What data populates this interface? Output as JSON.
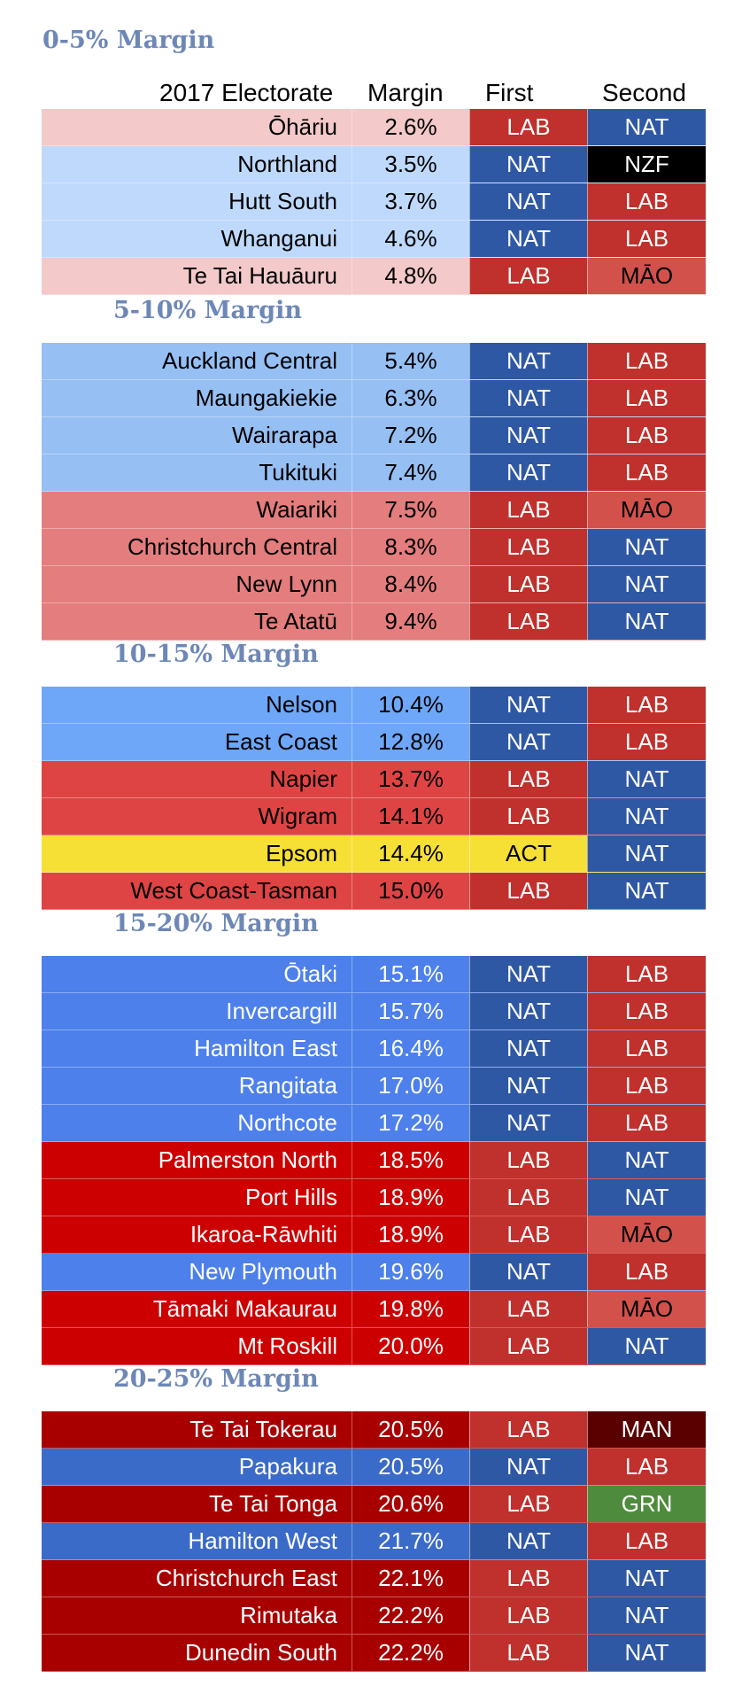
{
  "headers": {
    "electorate": "2017 Electorate",
    "margin": "Margin",
    "first": "First",
    "second": "Second"
  },
  "party_colors": {
    "LAB": "#c0302c",
    "NAT": "#2f58a4",
    "NZF": "#000000",
    "MĀO": "#d3514b",
    "ACT": "#f7e036",
    "MAN": "#5a0000",
    "GRN": "#4f8b3c"
  },
  "party_text_colors": {
    "ACT": "#000000",
    "MĀO": "#000000"
  },
  "sections": [
    {
      "title": "0-5% Margin",
      "rows": [
        {
          "name": "Ōhāriu",
          "margin": "2.6%",
          "first": "LAB",
          "second": "NAT",
          "bg": "#f3c9c9",
          "fg": "#000000"
        },
        {
          "name": "Northland",
          "margin": "3.5%",
          "first": "NAT",
          "second": "NZF",
          "bg": "#bed9fb",
          "fg": "#000000"
        },
        {
          "name": "Hutt South",
          "margin": "3.7%",
          "first": "NAT",
          "second": "LAB",
          "bg": "#bed9fb",
          "fg": "#000000"
        },
        {
          "name": "Whanganui",
          "margin": "4.6%",
          "first": "NAT",
          "second": "LAB",
          "bg": "#bed9fb",
          "fg": "#000000"
        },
        {
          "name": "Te Tai Hauāuru",
          "margin": "4.8%",
          "first": "LAB",
          "second": "MĀO",
          "bg": "#f3c9c9",
          "fg": "#000000"
        }
      ]
    },
    {
      "title": "5-10% Margin",
      "rows": [
        {
          "name": "Auckland Central",
          "margin": "5.4%",
          "first": "NAT",
          "second": "LAB",
          "bg": "#96bff3",
          "fg": "#000000"
        },
        {
          "name": "Maungakiekie",
          "margin": "6.3%",
          "first": "NAT",
          "second": "LAB",
          "bg": "#96bff3",
          "fg": "#000000"
        },
        {
          "name": "Wairarapa",
          "margin": "7.2%",
          "first": "NAT",
          "second": "LAB",
          "bg": "#96bff3",
          "fg": "#000000"
        },
        {
          "name": "Tukituki",
          "margin": "7.4%",
          "first": "NAT",
          "second": "LAB",
          "bg": "#96bff3",
          "fg": "#000000"
        },
        {
          "name": "Waiariki",
          "margin": "7.5%",
          "first": "LAB",
          "second": "MĀO",
          "bg": "#e47d7d",
          "fg": "#000000"
        },
        {
          "name": "Christchurch Central",
          "margin": "8.3%",
          "first": "LAB",
          "second": "NAT",
          "bg": "#e47d7d",
          "fg": "#000000"
        },
        {
          "name": "New Lynn",
          "margin": "8.4%",
          "first": "LAB",
          "second": "NAT",
          "bg": "#e47d7d",
          "fg": "#000000"
        },
        {
          "name": "Te Atatū",
          "margin": "9.4%",
          "first": "LAB",
          "second": "NAT",
          "bg": "#e47d7d",
          "fg": "#000000"
        }
      ]
    },
    {
      "title": "10-15% Margin",
      "rows": [
        {
          "name": "Nelson",
          "margin": "10.4%",
          "first": "NAT",
          "second": "LAB",
          "bg": "#6ea7f7",
          "fg": "#000000"
        },
        {
          "name": "East Coast",
          "margin": "12.8%",
          "first": "NAT",
          "second": "LAB",
          "bg": "#6ea7f7",
          "fg": "#000000"
        },
        {
          "name": "Napier",
          "margin": "13.7%",
          "first": "LAB",
          "second": "NAT",
          "bg": "#df4444",
          "fg": "#000000"
        },
        {
          "name": "Wigram",
          "margin": "14.1%",
          "first": "LAB",
          "second": "NAT",
          "bg": "#df4444",
          "fg": "#000000"
        },
        {
          "name": "Epsom",
          "margin": "14.4%",
          "first": "ACT",
          "second": "NAT",
          "bg": "#f7e036",
          "fg": "#000000"
        },
        {
          "name": "West Coast-Tasman",
          "margin": "15.0%",
          "first": "LAB",
          "second": "NAT",
          "bg": "#df4444",
          "fg": "#000000"
        }
      ]
    },
    {
      "title": "15-20% Margin",
      "rows": [
        {
          "name": "Ōtaki",
          "margin": "15.1%",
          "first": "NAT",
          "second": "LAB",
          "bg": "#4d80ea",
          "fg": "#ffffff"
        },
        {
          "name": "Invercargill",
          "margin": "15.7%",
          "first": "NAT",
          "second": "LAB",
          "bg": "#4d80ea",
          "fg": "#ffffff"
        },
        {
          "name": "Hamilton East",
          "margin": "16.4%",
          "first": "NAT",
          "second": "LAB",
          "bg": "#4d80ea",
          "fg": "#ffffff"
        },
        {
          "name": "Rangitata",
          "margin": "17.0%",
          "first": "NAT",
          "second": "LAB",
          "bg": "#4d80ea",
          "fg": "#ffffff"
        },
        {
          "name": "Northcote",
          "margin": "17.2%",
          "first": "NAT",
          "second": "LAB",
          "bg": "#4d80ea",
          "fg": "#ffffff"
        },
        {
          "name": "Palmerston North",
          "margin": "18.5%",
          "first": "LAB",
          "second": "NAT",
          "bg": "#cc0000",
          "fg": "#ffffff"
        },
        {
          "name": "Port Hills",
          "margin": "18.9%",
          "first": "LAB",
          "second": "NAT",
          "bg": "#cc0000",
          "fg": "#ffffff"
        },
        {
          "name": "Ikaroa-Rāwhiti",
          "margin": "18.9%",
          "first": "LAB",
          "second": "MĀO",
          "bg": "#cc0000",
          "fg": "#ffffff"
        },
        {
          "name": "New Plymouth",
          "margin": "19.6%",
          "first": "NAT",
          "second": "LAB",
          "bg": "#4d80ea",
          "fg": "#ffffff"
        },
        {
          "name": "Tāmaki Makaurau",
          "margin": "19.8%",
          "first": "LAB",
          "second": "MĀO",
          "bg": "#cc0000",
          "fg": "#ffffff"
        },
        {
          "name": "Mt Roskill",
          "margin": "20.0%",
          "first": "LAB",
          "second": "NAT",
          "bg": "#cc0000",
          "fg": "#ffffff"
        }
      ]
    },
    {
      "title": "20-25% Margin",
      "rows": [
        {
          "name": "Te Tai Tokerau",
          "margin": "20.5%",
          "first": "LAB",
          "second": "MAN",
          "bg": "#a80000",
          "fg": "#ffffff"
        },
        {
          "name": "Papakura",
          "margin": "20.5%",
          "first": "NAT",
          "second": "LAB",
          "bg": "#3b6bc9",
          "fg": "#ffffff"
        },
        {
          "name": "Te Tai Tonga",
          "margin": "20.6%",
          "first": "LAB",
          "second": "GRN",
          "bg": "#a80000",
          "fg": "#ffffff"
        },
        {
          "name": "Hamilton West",
          "margin": "21.7%",
          "first": "NAT",
          "second": "LAB",
          "bg": "#3b6bc9",
          "fg": "#ffffff"
        },
        {
          "name": "Christchurch East",
          "margin": "22.1%",
          "first": "LAB",
          "second": "NAT",
          "bg": "#a80000",
          "fg": "#ffffff"
        },
        {
          "name": "Rimutaka",
          "margin": "22.2%",
          "first": "LAB",
          "second": "NAT",
          "bg": "#a80000",
          "fg": "#ffffff"
        },
        {
          "name": "Dunedin South",
          "margin": "22.2%",
          "first": "LAB",
          "second": "NAT",
          "bg": "#a80000",
          "fg": "#ffffff"
        }
      ]
    }
  ]
}
